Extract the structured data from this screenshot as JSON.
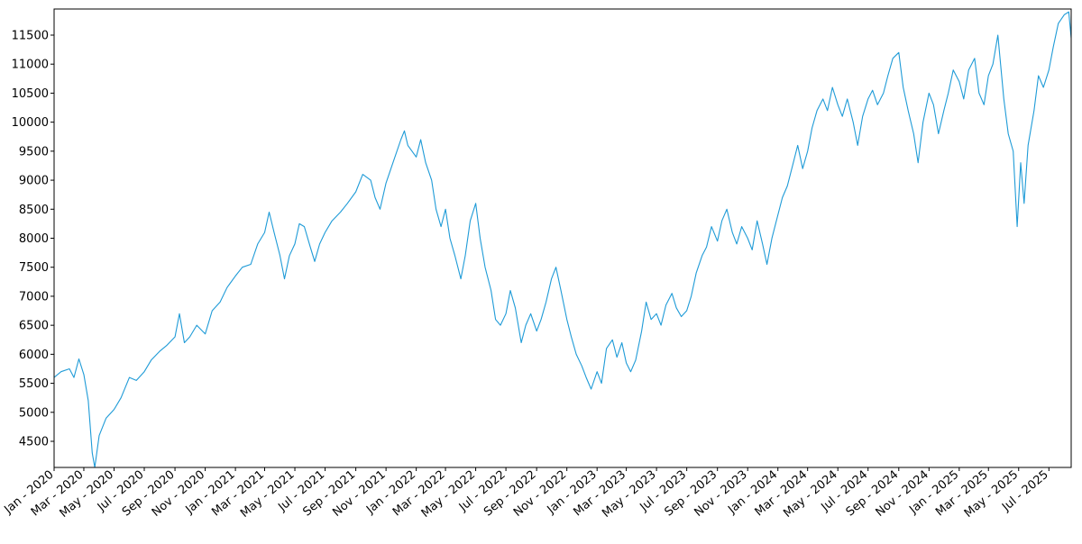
{
  "chart_data": {
    "type": "line",
    "title": "",
    "xlabel": "",
    "ylabel": "",
    "grid": false,
    "legend": "none",
    "line_color": "#1f9bd7",
    "xlim": [
      "2020-01-01",
      "2025-08-15"
    ],
    "ylim": [
      4050,
      11950
    ],
    "y_ticks": [
      4500,
      5000,
      5500,
      6000,
      6500,
      7000,
      7500,
      8000,
      8500,
      9000,
      9500,
      10000,
      10500,
      11000,
      11500
    ],
    "x_ticks": [
      {
        "date": "2020-01-01",
        "label": "Jan - 2020"
      },
      {
        "date": "2020-03-01",
        "label": "Mar - 2020"
      },
      {
        "date": "2020-05-01",
        "label": "May - 2020"
      },
      {
        "date": "2020-07-01",
        "label": "Jul - 2020"
      },
      {
        "date": "2020-09-01",
        "label": "Sep - 2020"
      },
      {
        "date": "2020-11-01",
        "label": "Nov - 2020"
      },
      {
        "date": "2021-01-01",
        "label": "Jan - 2021"
      },
      {
        "date": "2021-03-01",
        "label": "Mar - 2021"
      },
      {
        "date": "2021-05-01",
        "label": "May - 2021"
      },
      {
        "date": "2021-07-01",
        "label": "Jul - 2021"
      },
      {
        "date": "2021-09-01",
        "label": "Sep - 2021"
      },
      {
        "date": "2021-11-01",
        "label": "Nov - 2021"
      },
      {
        "date": "2022-01-01",
        "label": "Jan - 2022"
      },
      {
        "date": "2022-03-01",
        "label": "Mar - 2022"
      },
      {
        "date": "2022-05-01",
        "label": "May - 2022"
      },
      {
        "date": "2022-07-01",
        "label": "Jul - 2022"
      },
      {
        "date": "2022-09-01",
        "label": "Sep - 2022"
      },
      {
        "date": "2022-11-01",
        "label": "Nov - 2022"
      },
      {
        "date": "2023-01-01",
        "label": "Jan - 2023"
      },
      {
        "date": "2023-03-01",
        "label": "Mar - 2023"
      },
      {
        "date": "2023-05-01",
        "label": "May - 2023"
      },
      {
        "date": "2023-07-01",
        "label": "Jul - 2023"
      },
      {
        "date": "2023-09-01",
        "label": "Sep - 2023"
      },
      {
        "date": "2023-11-01",
        "label": "Nov - 2023"
      },
      {
        "date": "2024-01-01",
        "label": "Jan - 2024"
      },
      {
        "date": "2024-03-01",
        "label": "Mar - 2024"
      },
      {
        "date": "2024-05-01",
        "label": "May - 2024"
      },
      {
        "date": "2024-07-01",
        "label": "Jul - 2024"
      },
      {
        "date": "2024-09-01",
        "label": "Sep - 2024"
      },
      {
        "date": "2024-11-01",
        "label": "Nov - 2024"
      },
      {
        "date": "2025-01-01",
        "label": "Jan - 2025"
      },
      {
        "date": "2025-03-01",
        "label": "Mar - 2025"
      },
      {
        "date": "2025-05-01",
        "label": "May - 2025"
      },
      {
        "date": "2025-07-01",
        "label": "Jul - 2025"
      }
    ],
    "series": [
      {
        "points": [
          [
            "2020-01-01",
            5600
          ],
          [
            "2020-01-15",
            5700
          ],
          [
            "2020-02-01",
            5750
          ],
          [
            "2020-02-10",
            5600
          ],
          [
            "2020-02-20",
            5920
          ],
          [
            "2020-03-01",
            5650
          ],
          [
            "2020-03-10",
            5200
          ],
          [
            "2020-03-18",
            4300
          ],
          [
            "2020-03-23",
            4050
          ],
          [
            "2020-04-01",
            4600
          ],
          [
            "2020-04-15",
            4900
          ],
          [
            "2020-05-01",
            5050
          ],
          [
            "2020-05-15",
            5250
          ],
          [
            "2020-06-01",
            5600
          ],
          [
            "2020-06-15",
            5550
          ],
          [
            "2020-07-01",
            5700
          ],
          [
            "2020-07-15",
            5900
          ],
          [
            "2020-08-01",
            6050
          ],
          [
            "2020-08-15",
            6150
          ],
          [
            "2020-09-01",
            6300
          ],
          [
            "2020-09-10",
            6700
          ],
          [
            "2020-09-20",
            6200
          ],
          [
            "2020-10-01",
            6300
          ],
          [
            "2020-10-15",
            6500
          ],
          [
            "2020-11-01",
            6350
          ],
          [
            "2020-11-15",
            6750
          ],
          [
            "2020-12-01",
            6900
          ],
          [
            "2020-12-15",
            7150
          ],
          [
            "2021-01-01",
            7350
          ],
          [
            "2021-01-15",
            7500
          ],
          [
            "2021-02-01",
            7550
          ],
          [
            "2021-02-15",
            7900
          ],
          [
            "2021-03-01",
            8100
          ],
          [
            "2021-03-10",
            8450
          ],
          [
            "2021-03-20",
            8100
          ],
          [
            "2021-04-01",
            7700
          ],
          [
            "2021-04-10",
            7300
          ],
          [
            "2021-04-20",
            7700
          ],
          [
            "2021-05-01",
            7900
          ],
          [
            "2021-05-10",
            8250
          ],
          [
            "2021-05-20",
            8200
          ],
          [
            "2021-06-01",
            7850
          ],
          [
            "2021-06-10",
            7600
          ],
          [
            "2021-06-20",
            7900
          ],
          [
            "2021-07-01",
            8100
          ],
          [
            "2021-07-15",
            8300
          ],
          [
            "2021-08-01",
            8450
          ],
          [
            "2021-08-15",
            8600
          ],
          [
            "2021-09-01",
            8800
          ],
          [
            "2021-09-15",
            9100
          ],
          [
            "2021-10-01",
            9000
          ],
          [
            "2021-10-10",
            8700
          ],
          [
            "2021-10-20",
            8500
          ],
          [
            "2021-11-01",
            8950
          ],
          [
            "2021-11-15",
            9300
          ],
          [
            "2021-12-01",
            9700
          ],
          [
            "2021-12-08",
            9850
          ],
          [
            "2021-12-15",
            9600
          ],
          [
            "2022-01-01",
            9400
          ],
          [
            "2022-01-10",
            9700
          ],
          [
            "2022-01-20",
            9300
          ],
          [
            "2022-02-01",
            9000
          ],
          [
            "2022-02-10",
            8500
          ],
          [
            "2022-02-20",
            8200
          ],
          [
            "2022-03-01",
            8500
          ],
          [
            "2022-03-10",
            8000
          ],
          [
            "2022-03-20",
            7700
          ],
          [
            "2022-04-01",
            7300
          ],
          [
            "2022-04-10",
            7700
          ],
          [
            "2022-04-20",
            8300
          ],
          [
            "2022-05-01",
            8600
          ],
          [
            "2022-05-10",
            8000
          ],
          [
            "2022-05-20",
            7500
          ],
          [
            "2022-06-01",
            7100
          ],
          [
            "2022-06-10",
            6600
          ],
          [
            "2022-06-20",
            6500
          ],
          [
            "2022-07-01",
            6700
          ],
          [
            "2022-07-10",
            7100
          ],
          [
            "2022-07-20",
            6800
          ],
          [
            "2022-08-01",
            6200
          ],
          [
            "2022-08-10",
            6500
          ],
          [
            "2022-08-20",
            6700
          ],
          [
            "2022-09-01",
            6400
          ],
          [
            "2022-09-10",
            6600
          ],
          [
            "2022-09-20",
            6900
          ],
          [
            "2022-10-01",
            7300
          ],
          [
            "2022-10-10",
            7500
          ],
          [
            "2022-10-20",
            7100
          ],
          [
            "2022-11-01",
            6600
          ],
          [
            "2022-11-10",
            6300
          ],
          [
            "2022-11-20",
            6000
          ],
          [
            "2022-12-01",
            5800
          ],
          [
            "2022-12-10",
            5600
          ],
          [
            "2022-12-20",
            5400
          ],
          [
            "2023-01-01",
            5700
          ],
          [
            "2023-01-10",
            5500
          ],
          [
            "2023-01-20",
            6100
          ],
          [
            "2023-02-01",
            6250
          ],
          [
            "2023-02-10",
            5950
          ],
          [
            "2023-02-20",
            6200
          ],
          [
            "2023-03-01",
            5850
          ],
          [
            "2023-03-10",
            5700
          ],
          [
            "2023-03-20",
            5900
          ],
          [
            "2023-04-01",
            6400
          ],
          [
            "2023-04-10",
            6900
          ],
          [
            "2023-04-20",
            6600
          ],
          [
            "2023-05-01",
            6700
          ],
          [
            "2023-05-10",
            6500
          ],
          [
            "2023-05-20",
            6850
          ],
          [
            "2023-06-01",
            7050
          ],
          [
            "2023-06-10",
            6800
          ],
          [
            "2023-06-20",
            6650
          ],
          [
            "2023-07-01",
            6750
          ],
          [
            "2023-07-10",
            7000
          ],
          [
            "2023-07-20",
            7400
          ],
          [
            "2023-08-01",
            7700
          ],
          [
            "2023-08-10",
            7850
          ],
          [
            "2023-08-20",
            8200
          ],
          [
            "2023-09-01",
            7950
          ],
          [
            "2023-09-10",
            8300
          ],
          [
            "2023-09-20",
            8500
          ],
          [
            "2023-10-01",
            8100
          ],
          [
            "2023-10-10",
            7900
          ],
          [
            "2023-10-20",
            8200
          ],
          [
            "2023-11-01",
            8000
          ],
          [
            "2023-11-10",
            7800
          ],
          [
            "2023-11-20",
            8300
          ],
          [
            "2023-12-01",
            7900
          ],
          [
            "2023-12-10",
            7550
          ],
          [
            "2023-12-20",
            8000
          ],
          [
            "2024-01-01",
            8400
          ],
          [
            "2024-01-10",
            8700
          ],
          [
            "2024-01-20",
            8900
          ],
          [
            "2024-02-01",
            9300
          ],
          [
            "2024-02-10",
            9600
          ],
          [
            "2024-02-20",
            9200
          ],
          [
            "2024-03-01",
            9500
          ],
          [
            "2024-03-10",
            9900
          ],
          [
            "2024-03-20",
            10200
          ],
          [
            "2024-04-01",
            10400
          ],
          [
            "2024-04-10",
            10200
          ],
          [
            "2024-04-20",
            10600
          ],
          [
            "2024-05-01",
            10300
          ],
          [
            "2024-05-10",
            10100
          ],
          [
            "2024-05-20",
            10400
          ],
          [
            "2024-06-01",
            10000
          ],
          [
            "2024-06-10",
            9600
          ],
          [
            "2024-06-20",
            10100
          ],
          [
            "2024-07-01",
            10400
          ],
          [
            "2024-07-10",
            10550
          ],
          [
            "2024-07-20",
            10300
          ],
          [
            "2024-08-01",
            10500
          ],
          [
            "2024-08-10",
            10800
          ],
          [
            "2024-08-20",
            11100
          ],
          [
            "2024-09-01",
            11200
          ],
          [
            "2024-09-10",
            10600
          ],
          [
            "2024-09-20",
            10200
          ],
          [
            "2024-10-01",
            9800
          ],
          [
            "2024-10-10",
            9300
          ],
          [
            "2024-10-20",
            10000
          ],
          [
            "2024-11-01",
            10500
          ],
          [
            "2024-11-10",
            10300
          ],
          [
            "2024-11-20",
            9800
          ],
          [
            "2024-12-01",
            10200
          ],
          [
            "2024-12-10",
            10500
          ],
          [
            "2024-12-20",
            10900
          ],
          [
            "2025-01-01",
            10700
          ],
          [
            "2025-01-10",
            10400
          ],
          [
            "2025-01-20",
            10900
          ],
          [
            "2025-02-01",
            11100
          ],
          [
            "2025-02-10",
            10500
          ],
          [
            "2025-02-20",
            10300
          ],
          [
            "2025-03-01",
            10800
          ],
          [
            "2025-03-10",
            11000
          ],
          [
            "2025-03-20",
            11500
          ],
          [
            "2025-04-01",
            10400
          ],
          [
            "2025-04-10",
            9800
          ],
          [
            "2025-04-20",
            9500
          ],
          [
            "2025-04-28",
            8200
          ],
          [
            "2025-05-05",
            9300
          ],
          [
            "2025-05-12",
            8600
          ],
          [
            "2025-05-20",
            9600
          ],
          [
            "2025-06-01",
            10200
          ],
          [
            "2025-06-10",
            10800
          ],
          [
            "2025-06-20",
            10600
          ],
          [
            "2025-07-01",
            10900
          ],
          [
            "2025-07-10",
            11300
          ],
          [
            "2025-07-20",
            11700
          ],
          [
            "2025-08-01",
            11850
          ],
          [
            "2025-08-10",
            11900
          ],
          [
            "2025-08-15",
            11450
          ]
        ]
      }
    ]
  }
}
